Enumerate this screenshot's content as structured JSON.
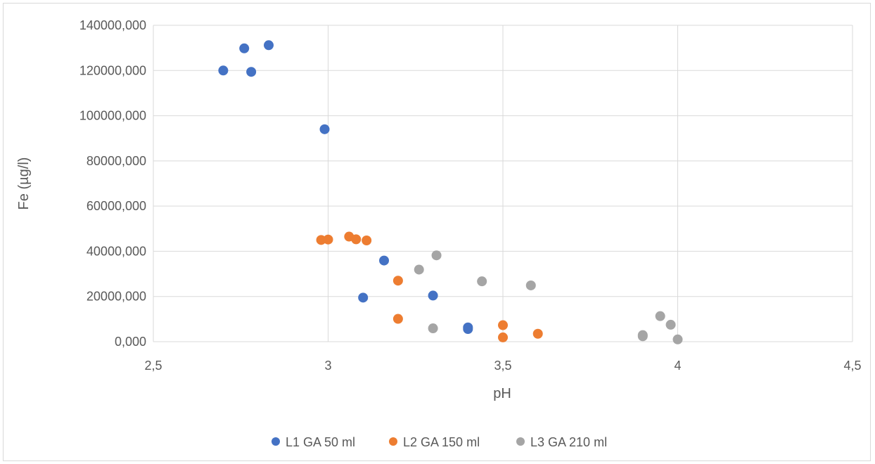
{
  "chart_data": {
    "type": "scatter",
    "title": "",
    "xlabel": "pH",
    "ylabel": "Fe (µg/l)",
    "xlim": [
      2.5,
      4.5
    ],
    "ylim": [
      0,
      140000
    ],
    "x_ticks": [
      2.5,
      3,
      3.5,
      4,
      4.5
    ],
    "x_tick_labels": [
      "2,5",
      "3",
      "3,5",
      "4",
      "4,5"
    ],
    "y_ticks": [
      0,
      20000,
      40000,
      60000,
      80000,
      100000,
      120000,
      140000
    ],
    "y_tick_labels": [
      "0,000",
      "20000,000",
      "40000,000",
      "60000,000",
      "80000,000",
      "100000,000",
      "120000,000",
      "140000,000"
    ],
    "grid": "major gridlines on both axes",
    "legend_position": "bottom",
    "series": [
      {
        "name": "L1 GA 50 ml",
        "color": "#4472C4",
        "points": [
          [
            2.7,
            120000
          ],
          [
            2.76,
            129800
          ],
          [
            2.78,
            119400
          ],
          [
            2.83,
            131200
          ],
          [
            2.99,
            94000
          ],
          [
            3.1,
            19500
          ],
          [
            3.16,
            35900
          ],
          [
            3.3,
            20400
          ],
          [
            3.4,
            6300
          ],
          [
            3.4,
            5600
          ]
        ]
      },
      {
        "name": "L2 GA 150 ml",
        "color": "#ED7D31",
        "points": [
          [
            2.98,
            45000
          ],
          [
            3.0,
            45200
          ],
          [
            3.06,
            46500
          ],
          [
            3.08,
            45300
          ],
          [
            3.11,
            44800
          ],
          [
            3.2,
            27000
          ],
          [
            3.2,
            10100
          ],
          [
            3.5,
            7300
          ],
          [
            3.5,
            1900
          ],
          [
            3.6,
            3500
          ]
        ]
      },
      {
        "name": "L3 GA 210 ml",
        "color": "#A5A5A5",
        "points": [
          [
            3.26,
            31900
          ],
          [
            3.31,
            38200
          ],
          [
            3.3,
            5900
          ],
          [
            3.44,
            26700
          ],
          [
            3.58,
            24900
          ],
          [
            3.9,
            2900
          ],
          [
            3.9,
            2400
          ],
          [
            3.95,
            11300
          ],
          [
            3.98,
            7500
          ],
          [
            4.0,
            1000
          ]
        ]
      }
    ]
  },
  "colors": {
    "gridline": "#d9d9d9",
    "text": "#595959"
  }
}
